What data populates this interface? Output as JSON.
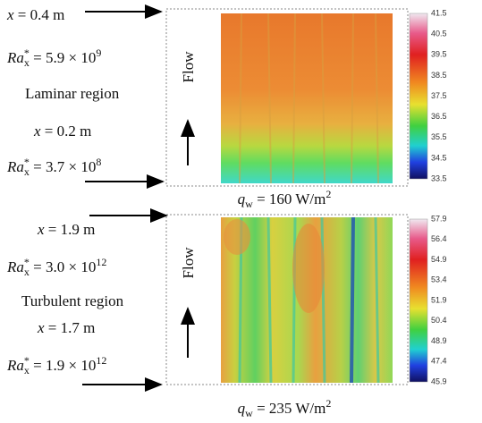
{
  "panels": [
    {
      "x_top": {
        "var": "x",
        "rest": " = 0.4 m"
      },
      "ra_top": {
        "lead": "Ra",
        "sup": "*",
        "sub": "x",
        "rest": " = 5.9 × 10",
        "exp": "9"
      },
      "region": "Laminar region",
      "x_bottom": {
        "var": "x",
        "rest": " = 0.2 m"
      },
      "ra_bottom": {
        "lead": "Ra",
        "sup": "*",
        "sub": "x",
        "rest": " = 3.7 × 10",
        "exp": "8"
      },
      "flow": "Flow",
      "colorbar": [
        "41.5",
        "40.5",
        "39.5",
        "38.5",
        "37.5",
        "36.5",
        "35.5",
        "34.5",
        "33.5"
      ],
      "caption": {
        "var": "q",
        "sub": "w",
        "rest": " = 160 W/m",
        "exp": "2"
      }
    },
    {
      "x_top": {
        "var": "x",
        "rest": " = 1.9 m"
      },
      "ra_top": {
        "lead": "Ra",
        "sup": "*",
        "sub": "x",
        "rest": " = 3.0 × 10",
        "exp": "12"
      },
      "region": "Turbulent region",
      "x_bottom": {
        "var": "x",
        "rest": " = 1.7 m"
      },
      "ra_bottom": {
        "lead": "Ra",
        "sup": "*",
        "sub": "x",
        "rest": " = 1.9 × 10",
        "exp": "12"
      },
      "flow": "Flow",
      "colorbar": [
        "57.9",
        "56.4",
        "54.9",
        "53.4",
        "51.9",
        "50.4",
        "48.9",
        "47.4",
        "45.9"
      ],
      "caption": {
        "var": "q",
        "sub": "w",
        "rest": " = 235 W/m",
        "exp": "2"
      }
    }
  ]
}
